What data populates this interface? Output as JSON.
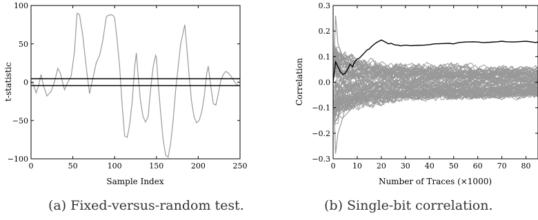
{
  "chart_data": [
    {
      "type": "line",
      "caption": "(a) Fixed-versus-random test.",
      "xlabel": "Sample Index",
      "ylabel": "t-statistic",
      "xlim": [
        0,
        250
      ],
      "ylim": [
        -100,
        100
      ],
      "xticks": [
        "0",
        "50",
        "100",
        "150",
        "200",
        "250"
      ],
      "yticks": [
        "−100",
        "−50",
        "0",
        "50",
        "100"
      ],
      "grid": false,
      "series": [
        {
          "color": "#999999",
          "x": [
            0,
            3,
            6,
            9,
            12,
            15,
            19,
            24,
            28,
            32,
            35,
            40,
            44,
            48,
            52,
            55,
            58,
            62,
            66,
            70,
            74,
            78,
            82,
            86,
            90,
            92,
            95,
            98,
            100,
            103,
            106,
            109,
            112,
            115,
            118,
            121,
            124,
            126,
            128,
            131,
            134,
            137,
            140,
            143,
            146,
            149,
            150,
            152,
            155,
            158,
            161,
            164,
            167,
            170,
            173,
            176,
            179,
            182,
            184,
            186,
            189,
            192,
            195,
            198,
            201,
            204,
            207,
            210,
            212,
            215,
            218,
            221,
            224,
            227,
            230,
            233,
            236,
            239,
            242,
            245,
            248
          ],
          "y": [
            0,
            -3,
            -14,
            -5,
            10,
            -5,
            -18,
            -12,
            0,
            18,
            12,
            -10,
            0,
            8,
            40,
            90,
            88,
            60,
            20,
            -15,
            5,
            25,
            35,
            55,
            85,
            87,
            88,
            87,
            84,
            55,
            20,
            -30,
            -70,
            -72,
            -55,
            -25,
            20,
            38,
            10,
            -25,
            -45,
            -52,
            -45,
            -10,
            20,
            35,
            32,
            0,
            -40,
            -75,
            -95,
            -98,
            -80,
            -50,
            -10,
            20,
            50,
            65,
            75,
            50,
            10,
            -25,
            -45,
            -53,
            -50,
            -40,
            -20,
            10,
            21,
            -5,
            -28,
            -30,
            -15,
            2,
            10,
            14,
            12,
            8,
            3,
            -2,
            -4
          ]
        },
        {
          "color": "#000000",
          "x": [
            0,
            250
          ],
          "y": [
            4.5,
            4.5
          ]
        },
        {
          "color": "#000000",
          "x": [
            0,
            250
          ],
          "y": [
            -4.5,
            -4.5
          ]
        }
      ]
    },
    {
      "type": "line",
      "caption": "(b) Single-bit correlation.",
      "xlabel": "Number of Traces (×1000)",
      "ylabel": "Correlation",
      "xlim": [
        0,
        85
      ],
      "ylim": [
        -0.3,
        0.3
      ],
      "xticks": [
        "0",
        "10",
        "20",
        "30",
        "40",
        "50",
        "60",
        "70",
        "80"
      ],
      "yticks": [
        "−0.3",
        "−0.2",
        "−0.1",
        "0.0",
        "0.1",
        "0.2",
        "0.3"
      ],
      "grid": false,
      "background_series_color": "#999999",
      "background_series_note": "Dense bundle of gray correlation traces starting wide near ±0.27 and narrowing toward about ±0.04 by 85k traces.",
      "series": [
        {
          "color": "#999999",
          "x": [
            0,
            1,
            2,
            4,
            8,
            15,
            25,
            40,
            60,
            85
          ],
          "y": [
            0,
            0.26,
            0.15,
            0.1,
            0.08,
            0.055,
            0.045,
            0.04,
            0.035,
            0.03
          ]
        },
        {
          "color": "#999999",
          "x": [
            0,
            1,
            2,
            4,
            8,
            15,
            25,
            40,
            60,
            85
          ],
          "y": [
            0,
            -0.28,
            -0.2,
            -0.14,
            -0.1,
            -0.07,
            -0.055,
            -0.045,
            -0.04,
            -0.04
          ]
        },
        {
          "color": "#000000",
          "x": [
            0,
            1,
            2,
            3,
            4,
            5,
            6,
            7,
            8,
            9,
            10,
            11,
            12,
            13,
            14,
            15,
            16,
            17,
            18,
            19,
            20,
            21,
            22,
            23,
            24,
            25,
            26,
            27,
            28,
            30,
            32,
            35,
            38,
            40,
            42,
            45,
            48,
            50,
            52,
            55,
            58,
            60,
            62,
            65,
            68,
            70,
            72,
            75,
            78,
            80,
            82,
            84,
            85
          ],
          "y": [
            0,
            0.08,
            0.06,
            0.04,
            0.03,
            0.035,
            0.05,
            0.07,
            0.06,
            0.08,
            0.09,
            0.095,
            0.105,
            0.115,
            0.125,
            0.13,
            0.14,
            0.148,
            0.155,
            0.16,
            0.165,
            0.16,
            0.155,
            0.15,
            0.152,
            0.148,
            0.145,
            0.145,
            0.142,
            0.145,
            0.143,
            0.144,
            0.145,
            0.147,
            0.15,
            0.151,
            0.152,
            0.15,
            0.155,
            0.157,
            0.158,
            0.157,
            0.155,
            0.156,
            0.158,
            0.16,
            0.158,
            0.157,
            0.159,
            0.16,
            0.158,
            0.155,
            0.157
          ]
        }
      ]
    }
  ]
}
